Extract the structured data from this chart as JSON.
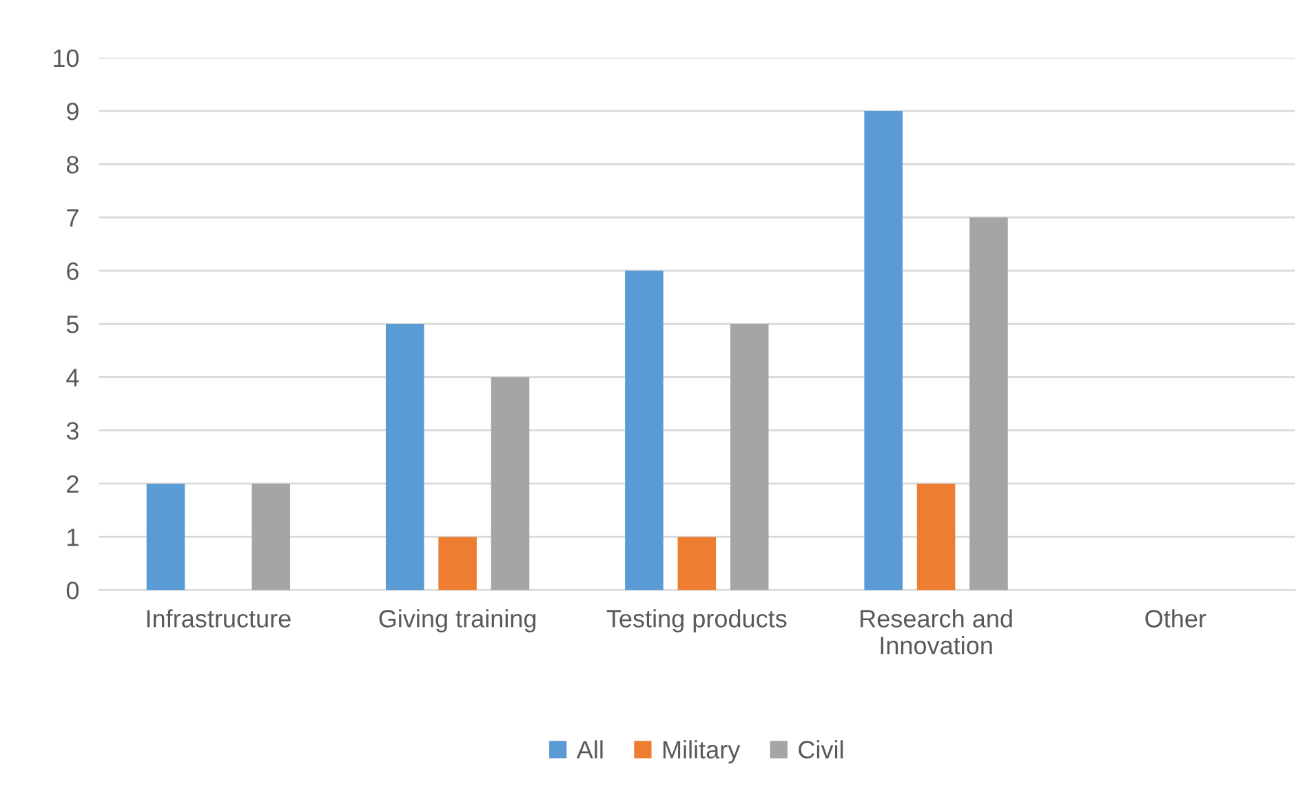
{
  "chart_data": {
    "type": "bar",
    "categories": [
      "Infrastructure",
      "Giving training",
      "Testing products",
      "Research and\nInnovation",
      "Other"
    ],
    "series": [
      {
        "name": "All",
        "color": "#5b9bd5",
        "values": [
          2,
          5,
          6,
          9,
          0
        ]
      },
      {
        "name": "Military",
        "color": "#ed7d31",
        "values": [
          0,
          1,
          1,
          2,
          0
        ]
      },
      {
        "name": "Civil",
        "color": "#a5a5a5",
        "values": [
          2,
          4,
          5,
          7,
          0
        ]
      }
    ],
    "ylim": [
      0,
      10
    ],
    "yticks": [
      0,
      1,
      2,
      3,
      4,
      5,
      6,
      7,
      8,
      9,
      10
    ],
    "grid": "y",
    "legend": "bottom"
  }
}
